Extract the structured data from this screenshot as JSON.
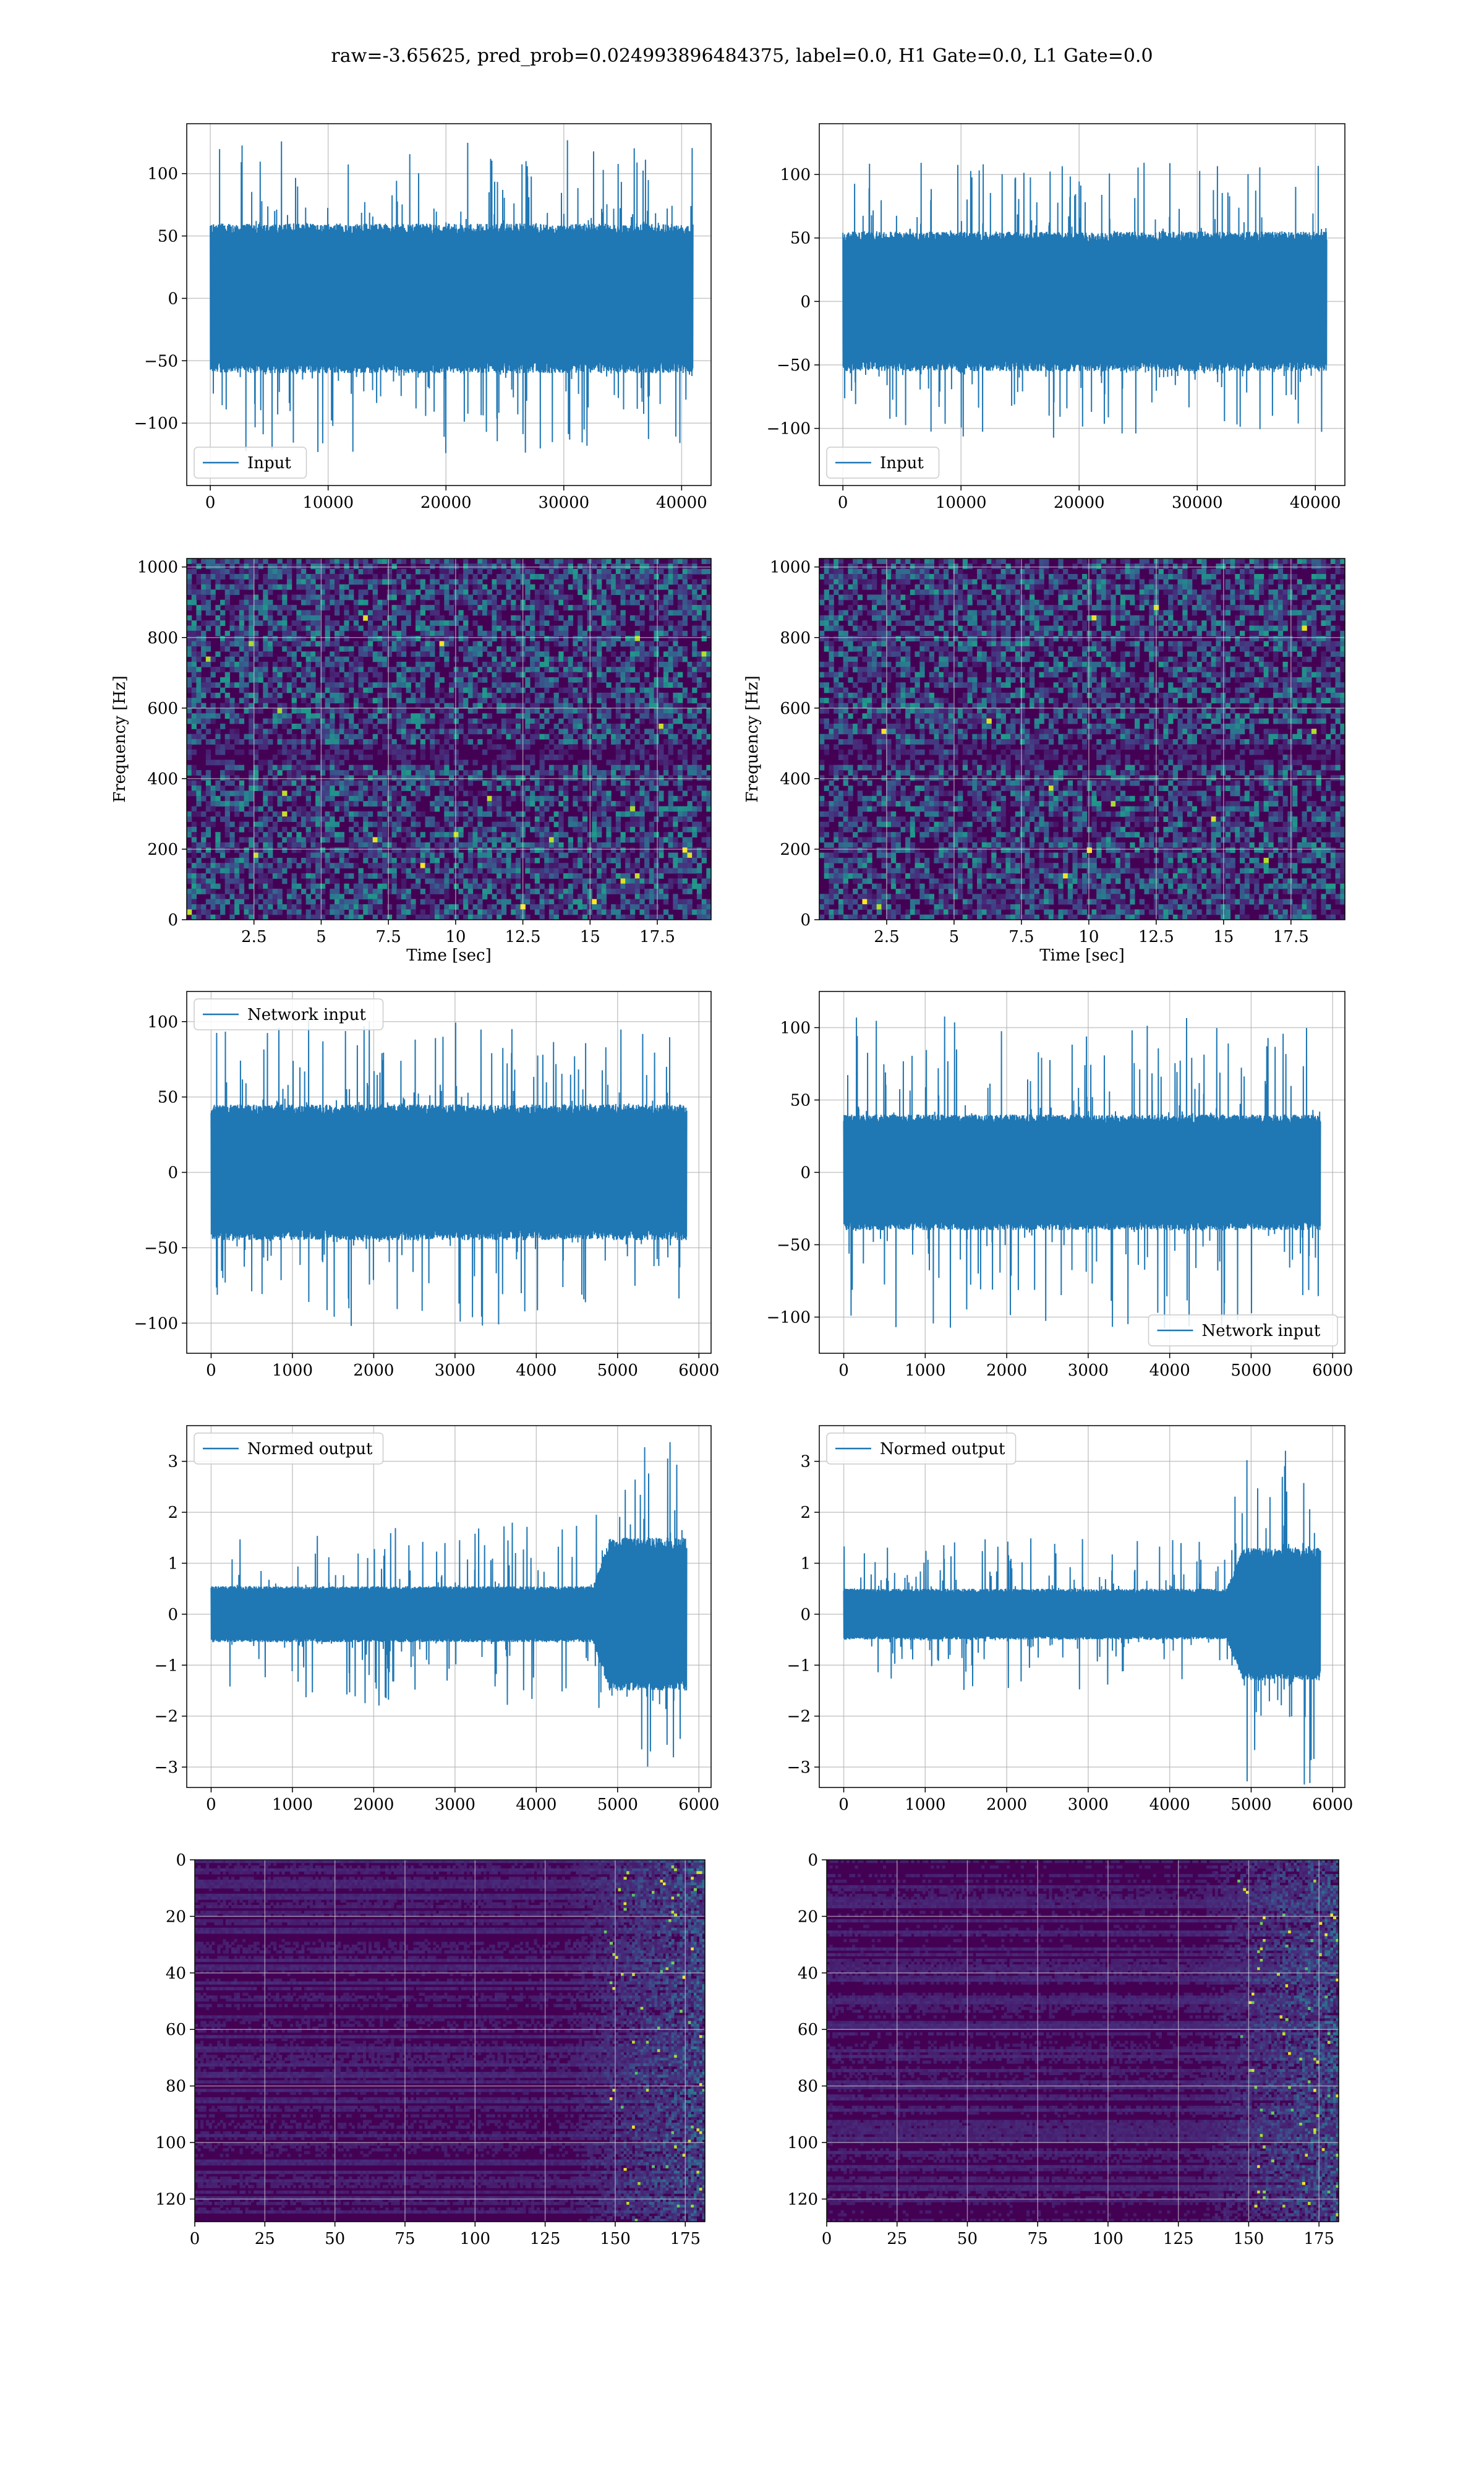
{
  "figure": {
    "title": "raw=-3.65625, pred_prob=0.024993896484375, label=0.0, H1 Gate=0.0, L1 Gate=0.0"
  },
  "colors": {
    "series": "#1f77b4",
    "grid": "#b0b0b0",
    "viridis_dark": "#440154",
    "viridis_mid": "#31688e",
    "viridis_green": "#35b779",
    "viridis_yellow": "#fde725"
  },
  "chart_data": [
    {
      "id": "input-h1",
      "type": "line",
      "subplot": "row1-left",
      "xlim": [
        -2000,
        42500
      ],
      "ylim": [
        -150,
        140
      ],
      "xticks": [
        0,
        10000,
        20000,
        30000,
        40000
      ],
      "yticks": [
        -100,
        -50,
        0,
        50,
        100
      ],
      "xlabel": "",
      "ylabel": "",
      "series": [
        {
          "name": "Input",
          "x_range": [
            0,
            40960
          ],
          "amplitude_core": 60,
          "amplitude_peak": 128,
          "envelope": "flat"
        }
      ],
      "legend": "lower-left",
      "grid": true
    },
    {
      "id": "input-l1",
      "type": "line",
      "subplot": "row1-right",
      "xlim": [
        -2000,
        42500
      ],
      "ylim": [
        -145,
        140
      ],
      "xticks": [
        0,
        10000,
        20000,
        30000,
        40000
      ],
      "yticks": [
        -100,
        -50,
        0,
        50,
        100
      ],
      "xlabel": "",
      "ylabel": "",
      "series": [
        {
          "name": "Input",
          "x_range": [
            0,
            40960
          ],
          "amplitude_core": 55,
          "amplitude_peak": 110,
          "envelope": "flat"
        }
      ],
      "legend": "lower-left",
      "grid": true
    },
    {
      "id": "spec-h1",
      "type": "heatmap",
      "subplot": "row2-left",
      "xlim": [
        0,
        19.5
      ],
      "ylim": [
        0,
        1024
      ],
      "xticks": [
        2.5,
        5.0,
        7.5,
        10.0,
        12.5,
        15.0,
        17.5
      ],
      "yticks": [
        0,
        200,
        400,
        600,
        800,
        1000
      ],
      "xlabel": "Time [sec]",
      "ylabel": "Frequency [Hz]",
      "colormap": "viridis",
      "grid": true
    },
    {
      "id": "spec-l1",
      "type": "heatmap",
      "subplot": "row2-right",
      "xlim": [
        0,
        19.5
      ],
      "ylim": [
        0,
        1024
      ],
      "xticks": [
        2.5,
        5.0,
        7.5,
        10.0,
        12.5,
        15.0,
        17.5
      ],
      "yticks": [
        0,
        200,
        400,
        600,
        800,
        1000
      ],
      "xlabel": "Time [sec]",
      "ylabel": "Frequency [Hz]",
      "colormap": "viridis",
      "grid": true
    },
    {
      "id": "net-h1",
      "type": "line",
      "subplot": "row3-left",
      "xlim": [
        -300,
        6150
      ],
      "ylim": [
        -120,
        120
      ],
      "xticks": [
        0,
        1000,
        2000,
        3000,
        4000,
        5000,
        6000
      ],
      "yticks": [
        -100,
        -50,
        0,
        50,
        100
      ],
      "xlabel": "",
      "ylabel": "",
      "series": [
        {
          "name": "Network input",
          "x_range": [
            0,
            5850
          ],
          "amplitude_core": 45,
          "amplitude_peak": 102,
          "envelope": "flat"
        }
      ],
      "legend": "upper-left",
      "grid": true
    },
    {
      "id": "net-l1",
      "type": "line",
      "subplot": "row3-right",
      "xlim": [
        -300,
        6150
      ],
      "ylim": [
        -125,
        125
      ],
      "xticks": [
        0,
        1000,
        2000,
        3000,
        4000,
        5000,
        6000
      ],
      "yticks": [
        -100,
        -50,
        0,
        50,
        100
      ],
      "xlabel": "",
      "ylabel": "",
      "series": [
        {
          "name": "Network input",
          "x_range": [
            0,
            5850
          ],
          "amplitude_core": 40,
          "amplitude_peak": 108,
          "envelope": "flat"
        }
      ],
      "legend": "lower-right",
      "grid": true
    },
    {
      "id": "norm-h1",
      "type": "line",
      "subplot": "row4-left",
      "xlim": [
        -300,
        6150
      ],
      "ylim": [
        -3.4,
        3.7
      ],
      "xticks": [
        0,
        1000,
        2000,
        3000,
        4000,
        5000,
        6000
      ],
      "yticks": [
        -3,
        -2,
        -1,
        0,
        1,
        2,
        3
      ],
      "xlabel": "",
      "ylabel": "",
      "series": [
        {
          "name": "Normed output",
          "x_range": [
            0,
            5850
          ],
          "amplitude_core": 0.55,
          "amplitude_peak": 1.8,
          "envelope": "burst",
          "burst_start": 4700,
          "burst_core": 1.5,
          "burst_peak": 3.4
        }
      ],
      "legend": "upper-left",
      "grid": true
    },
    {
      "id": "norm-l1",
      "type": "line",
      "subplot": "row4-right",
      "xlim": [
        -300,
        6150
      ],
      "ylim": [
        -3.4,
        3.7
      ],
      "xticks": [
        0,
        1000,
        2000,
        3000,
        4000,
        5000,
        6000
      ],
      "yticks": [
        -3,
        -2,
        -1,
        0,
        1,
        2,
        3
      ],
      "xlabel": "",
      "ylabel": "",
      "series": [
        {
          "name": "Normed output",
          "x_range": [
            0,
            5850
          ],
          "amplitude_core": 0.5,
          "amplitude_peak": 1.5,
          "envelope": "burst",
          "burst_start": 4700,
          "burst_core": 1.3,
          "burst_peak": 3.4
        }
      ],
      "legend": "upper-left",
      "grid": true
    },
    {
      "id": "feat-h1",
      "type": "heatmap",
      "subplot": "row5-left",
      "xlim": [
        0,
        182
      ],
      "ylim": [
        128,
        0
      ],
      "xticks": [
        0,
        25,
        50,
        75,
        100,
        125,
        150,
        175
      ],
      "yticks": [
        0,
        20,
        40,
        60,
        80,
        100,
        120
      ],
      "xlabel": "",
      "ylabel": "",
      "colormap": "viridis",
      "grid": true
    },
    {
      "id": "feat-l1",
      "type": "heatmap",
      "subplot": "row5-right",
      "xlim": [
        0,
        182
      ],
      "ylim": [
        128,
        0
      ],
      "xticks": [
        0,
        25,
        50,
        75,
        100,
        125,
        150,
        175
      ],
      "yticks": [
        0,
        20,
        40,
        60,
        80,
        100,
        120
      ],
      "xlabel": "",
      "ylabel": "",
      "colormap": "viridis",
      "grid": true
    }
  ]
}
